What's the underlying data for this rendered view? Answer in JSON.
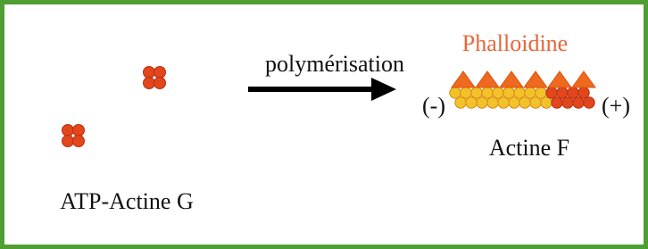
{
  "labels": {
    "polymerisation": "polymérisation",
    "phalloidine": "Phalloidine",
    "minus_end": "(-)",
    "plus_end": "(+)",
    "actine_f": "Actine F",
    "actine_g": "ATP-Actine G"
  }
}
